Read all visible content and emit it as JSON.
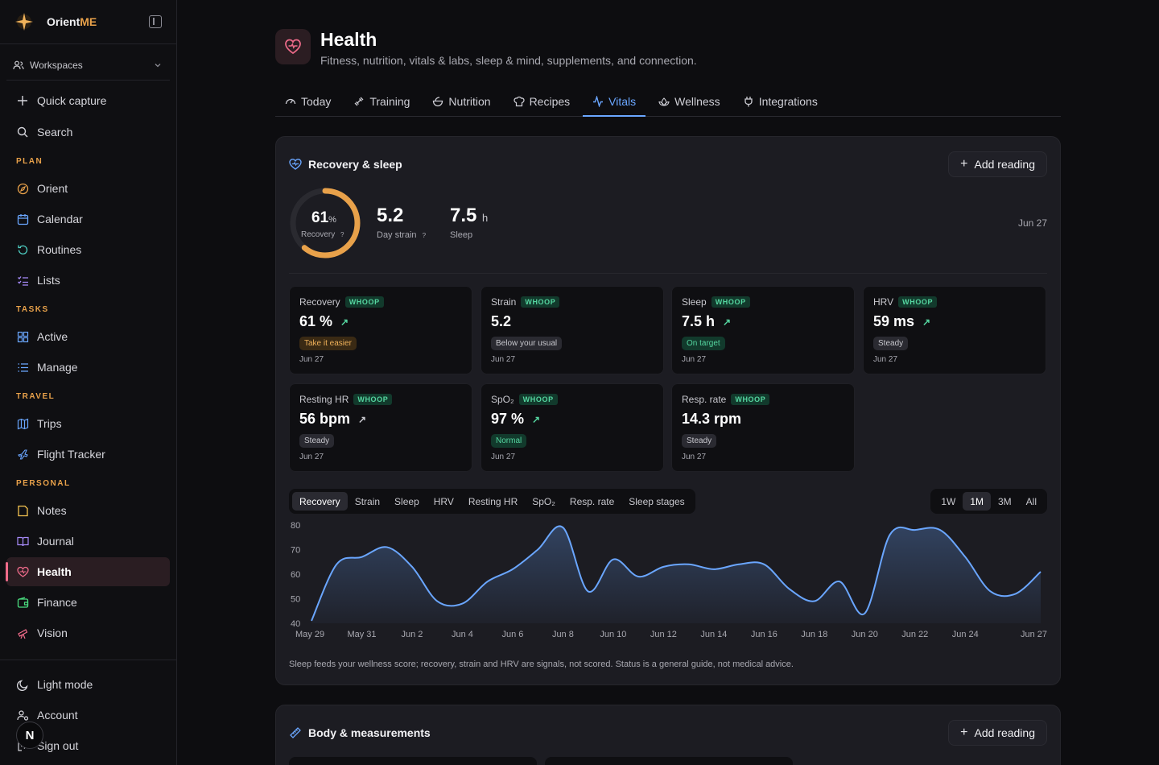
{
  "app": {
    "name_main": "Orient",
    "name_accent": "ME"
  },
  "sidebar": {
    "workspace_label": "Workspaces",
    "quick_capture": "Quick capture",
    "search": "Search",
    "sections": {
      "plan": "PLAN",
      "tasks": "TASKS",
      "travel": "TRAVEL",
      "personal": "PERSONAL"
    },
    "plan_items": [
      "Orient",
      "Calendar",
      "Routines",
      "Lists"
    ],
    "tasks_items": [
      "Active",
      "Manage"
    ],
    "travel_items": [
      "Trips",
      "Flight Tracker"
    ],
    "personal_items": [
      "Notes",
      "Journal",
      "Health",
      "Finance",
      "Vision"
    ],
    "active_item": "Health",
    "bottom": {
      "light_mode": "Light mode",
      "account": "Account",
      "sign_out": "Sign out",
      "avatar_letter": "N"
    }
  },
  "page": {
    "title": "Health",
    "subtitle": "Fitness, nutrition, vitals & labs, sleep & mind, supplements, and connection.",
    "tabs": [
      "Today",
      "Training",
      "Nutrition",
      "Recipes",
      "Vitals",
      "Wellness",
      "Integrations"
    ],
    "active_tab": "Vitals"
  },
  "recovery_card": {
    "title": "Recovery & sleep",
    "add_button": "Add reading",
    "summary": {
      "recovery_value": "61",
      "recovery_unit": "%",
      "recovery_fraction": 0.61,
      "recovery_label": "Recovery",
      "help_mark": "?",
      "strain_value": "5.2",
      "strain_label": "Day strain",
      "sleep_value": "7.5",
      "sleep_unit": "h",
      "sleep_label": "Sleep",
      "date": "Jun 27"
    },
    "metrics": [
      {
        "name": "Recovery",
        "source": "WHOOP",
        "value": "61 %",
        "trend": "↗",
        "status": "Take it easier",
        "status_kind": "warn",
        "date": "Jun 27"
      },
      {
        "name": "Strain",
        "source": "WHOOP",
        "value": "5.2",
        "trend": "",
        "status": "Below your usual",
        "status_kind": "neutral",
        "date": "Jun 27"
      },
      {
        "name": "Sleep",
        "source": "WHOOP",
        "value": "7.5 h",
        "trend": "↗",
        "status": "On target",
        "status_kind": "good",
        "date": "Jun 27"
      },
      {
        "name": "HRV",
        "source": "WHOOP",
        "value": "59 ms",
        "trend": "↗",
        "status": "Steady",
        "status_kind": "neutral",
        "date": "Jun 27"
      },
      {
        "name": "Resting HR",
        "source": "WHOOP",
        "value": "56 bpm",
        "trend": "↗",
        "status": "Steady",
        "status_kind": "neutral",
        "date": "Jun 27"
      },
      {
        "name": "SpO₂",
        "source": "WHOOP",
        "value": "97 %",
        "trend": "↗",
        "status": "Normal",
        "status_kind": "good",
        "date": "Jun 27"
      },
      {
        "name": "Resp. rate",
        "source": "WHOOP",
        "value": "14.3 rpm",
        "trend": "",
        "status": "Steady",
        "status_kind": "neutral",
        "date": "Jun 27"
      }
    ],
    "metric_tabs": [
      "Recovery",
      "Strain",
      "Sleep",
      "HRV",
      "Resting HR",
      "SpO₂",
      "Resp. rate",
      "Sleep stages"
    ],
    "active_metric_tab": "Recovery",
    "range_tabs": [
      "1W",
      "1M",
      "3M",
      "All"
    ],
    "active_range": "1M",
    "footnote": "Sleep feeds your wellness score; recovery, strain and HRV are signals, not scored. Status is a general guide, not medical advice."
  },
  "body_card": {
    "title": "Body & measurements",
    "add_button": "Add reading"
  },
  "colors": {
    "accent_orange": "#e8a14a",
    "accent_pink": "#ef6b8a",
    "accent_blue": "#6aa6ff",
    "whoop_green": "#55d6a0"
  },
  "chart_data": {
    "type": "area",
    "x": [
      "May 29",
      "May 30",
      "May 31",
      "Jun 1",
      "Jun 2",
      "Jun 3",
      "Jun 4",
      "Jun 5",
      "Jun 6",
      "Jun 7",
      "Jun 8",
      "Jun 9",
      "Jun 10",
      "Jun 11",
      "Jun 12",
      "Jun 13",
      "Jun 14",
      "Jun 15",
      "Jun 16",
      "Jun 17",
      "Jun 18",
      "Jun 19",
      "Jun 20",
      "Jun 21",
      "Jun 22",
      "Jun 23",
      "Jun 24",
      "Jun 25",
      "Jun 26",
      "Jun 27"
    ],
    "tick_labels": [
      "May 29",
      "May 31",
      "Jun 2",
      "Jun 4",
      "Jun 6",
      "Jun 8",
      "Jun 10",
      "Jun 12",
      "Jun 14",
      "Jun 16",
      "Jun 18",
      "Jun 20",
      "Jun 22",
      "Jun 24",
      "Jun 27"
    ],
    "series": [
      {
        "values": [
          41,
          64,
          67,
          71,
          63,
          49,
          48,
          57,
          62,
          70,
          79,
          53,
          66,
          59,
          63,
          64,
          62,
          64,
          64,
          54,
          49,
          57,
          44,
          76,
          78,
          78,
          67,
          53,
          52,
          61
        ]
      }
    ],
    "ylim": [
      40,
      80
    ],
    "yticks": [
      40,
      50,
      60,
      70,
      80
    ],
    "grid": false
  }
}
